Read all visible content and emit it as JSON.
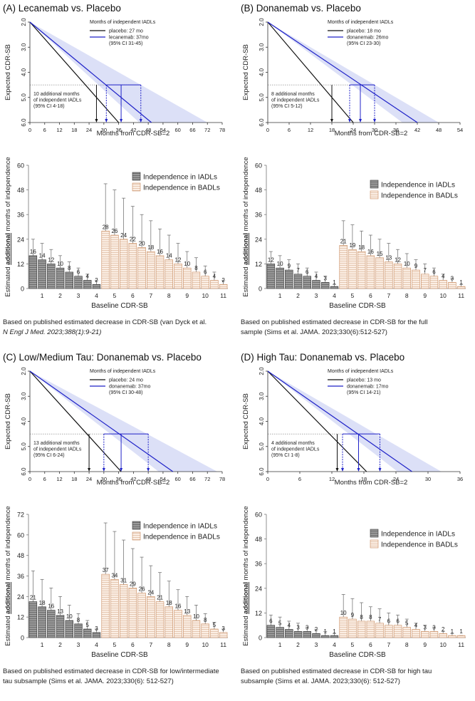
{
  "panels": [
    {
      "letter": "(A)",
      "title": "Lecanemab vs. Placebo",
      "line": {
        "ylabel": "Expected CDR-SB",
        "xlabel": "Months from CDR-SB=2",
        "xticks": [
          0,
          6,
          12,
          18,
          24,
          30,
          36,
          42,
          48,
          54,
          60,
          66,
          72,
          78
        ],
        "yticks": [
          "2.0",
          "3.0",
          "4.0",
          "5.0",
          "6.0"
        ],
        "xmax": 78,
        "legend_title": "Months of independent IADLs",
        "legend_placebo": "placebo: 27 mo",
        "legend_drug": "lecanemab: 37mo",
        "legend_ci": "(95% CI 31-45)",
        "annotation": [
          "10 additional months",
          "of  independent IADLs",
          "(95% CI 4-18)"
        ],
        "placebo_end": 36,
        "drug_end": 49.3,
        "ci_end": 72,
        "placebo_cross": 27,
        "drug_cross": 37,
        "ci_low": 31,
        "ci_high": 45
      },
      "bars": {
        "ylabel_parts": [
          "Estimated ",
          "additional",
          " months of independence"
        ],
        "xlabel": "Baseline CDR-SB",
        "ymax": 60,
        "yticks": [
          0,
          12,
          24,
          36,
          48,
          60
        ],
        "xticks": [
          "1",
          "2",
          "3",
          "4",
          "5",
          "6",
          "7",
          "8",
          "9",
          "10",
          "11"
        ],
        "legend": [
          "Independence in IADLs",
          "Independence in BADLs"
        ],
        "iadl": [
          16,
          14,
          12,
          10,
          8,
          6,
          4,
          2
        ],
        "iadl_err": [
          24,
          22,
          19,
          16,
          13,
          10,
          7,
          4
        ],
        "badl": [
          28,
          26,
          24,
          22,
          20,
          18,
          16,
          14,
          12,
          10,
          8,
          6,
          4,
          2
        ],
        "badl_err": [
          51,
          48,
          44,
          40,
          36,
          33,
          29,
          26,
          22,
          18,
          15,
          11,
          8,
          4
        ]
      },
      "caption": [
        {
          "text": "Based on published estimated decrease in CDR-SB (van Dyck et al.",
          "italic": false
        },
        {
          "text": "N Engl J Med. 2023;388(1):9-21)",
          "italic": true
        }
      ]
    },
    {
      "letter": "(B)",
      "title": "Donanemab vs. Placebo",
      "line": {
        "ylabel": "Expected CDR-SB",
        "xlabel": "Months from CDR-SB=2",
        "xticks": [
          0,
          6,
          12,
          18,
          24,
          30,
          36,
          42,
          48,
          54
        ],
        "yticks": [
          "2.0",
          "3.0",
          "4.0",
          "5.0",
          "6.0"
        ],
        "xmax": 54,
        "legend_title": "Months of independent IADLs",
        "legend_placebo": "placebo:  18 mo",
        "legend_drug": "donanemab: 26mo",
        "legend_ci": "(95% CI 23-30)",
        "annotation": [
          "8 additional months",
          "of  independent IADLs",
          "(95% CI 5-12)"
        ],
        "placebo_end": 24,
        "drug_end": 42,
        "ci_end": 48,
        "placebo_cross": 18,
        "drug_cross": 26,
        "ci_low": 23,
        "ci_high": 30
      },
      "bars": {
        "ylabel_parts": [
          "Estimated ",
          "additional",
          " months of independence"
        ],
        "xlabel": "Baseline CDR-SB",
        "ymax": 60,
        "yticks": [
          0,
          12,
          24,
          36,
          48,
          60
        ],
        "xticks": [
          "1",
          "2",
          "3",
          "4",
          "5",
          "6",
          "7",
          "8",
          "9",
          "10",
          "11"
        ],
        "legend": [
          "Independence in IADLs",
          "Independence in BADLs"
        ],
        "iadl": [
          12,
          10,
          9,
          7,
          6,
          4,
          3,
          1
        ],
        "iadl_err": [
          18,
          16,
          14,
          12,
          10,
          8,
          6,
          2
        ],
        "badl": [
          21,
          19,
          18,
          16,
          15,
          13,
          12,
          10,
          9,
          7,
          6,
          4,
          3,
          1
        ],
        "badl_err": [
          33,
          31,
          28,
          26,
          24,
          22,
          19,
          17,
          14,
          12,
          10,
          7,
          5,
          2
        ]
      },
      "caption": [
        {
          "text": "Based on published estimated decrease in CDR-SB for the full",
          "italic": false
        },
        {
          "text": "sample (Sims et al. JAMA. 2023;330(6):512-527)",
          "italic": false
        }
      ]
    },
    {
      "letter": "(C)",
      "title": "Low/Medium Tau: Donanemab vs. Placebo",
      "line": {
        "ylabel": "Expected CDR-SB",
        "xlabel": "Months from CDR-SB=2",
        "xticks": [
          0,
          6,
          12,
          18,
          24,
          30,
          36,
          42,
          48,
          54,
          60,
          66,
          72,
          78
        ],
        "yticks": [
          "2.0",
          "3.0",
          "4.0",
          "5.0",
          "6.0"
        ],
        "xmax": 78,
        "legend_title": "Months of independent IADLs",
        "legend_placebo": "placebo:  24 mo",
        "legend_drug": "donanemab: 37mo",
        "legend_ci": "(95% CI 30-48)",
        "annotation": [
          "13 additional months",
          "of  independent IADLs",
          "(95% CI 6-24)"
        ],
        "placebo_end": 37,
        "drug_end": 58,
        "ci_end": 76,
        "placebo_cross": 24,
        "drug_cross": 37,
        "ci_low": 30,
        "ci_high": 48
      },
      "bars": {
        "ylabel_parts": [
          "Estimated ",
          "additional",
          " months of independence"
        ],
        "xlabel": "Baseline CDR-SB",
        "ymax": 72,
        "yticks": [
          0,
          12,
          24,
          36,
          48,
          60,
          72
        ],
        "xticks": [
          "1",
          "2",
          "3",
          "4",
          "5",
          "6",
          "7",
          "8",
          "9",
          "10",
          "11"
        ],
        "legend": [
          "Independence in IADLs",
          "Independence in BADLs"
        ],
        "iadl": [
          21,
          18,
          16,
          13,
          10,
          8,
          5,
          3
        ],
        "iadl_err": [
          39,
          34,
          29,
          24,
          19,
          14,
          10,
          5
        ],
        "badl": [
          37,
          34,
          31,
          29,
          26,
          24,
          21,
          18,
          16,
          13,
          10,
          8,
          5,
          3
        ],
        "badl_err": [
          67,
          62,
          57,
          52,
          47,
          42,
          38,
          33,
          28,
          24,
          19,
          14,
          9,
          5
        ]
      },
      "caption": [
        {
          "text": "Based on published estimated decrease in CDR-SB for low/intermediate",
          "italic": false
        },
        {
          "text": "tau subsample (Sims et al. JAMA. 2023;330(6): 512-527)",
          "italic": false
        }
      ]
    },
    {
      "letter": "(D)",
      "title": "High Tau: Donanemab vs. Placebo",
      "line": {
        "ylabel": "Expected CDR-SB",
        "xlabel": "Months from CDR-SB=2",
        "xticks": [
          0,
          6,
          12,
          18,
          24,
          30,
          36
        ],
        "yticks": [
          "2.0",
          "3.0",
          "4.0",
          "5.0",
          "6.0"
        ],
        "xmax": 36,
        "legend_title": "Months of independent IADLs",
        "legend_placebo": "placebo:  13 mo",
        "legend_drug": "donanemab: 17mo",
        "legend_ci": "(95% CI 14-21)",
        "annotation": [
          "4 additional months",
          "of  independent IADLs",
          "(95% CI 1-8)"
        ],
        "placebo_end": 18.5,
        "drug_end": 27,
        "ci_end": 32.5,
        "placebo_cross": 13,
        "drug_cross": 17,
        "ci_low": 14,
        "ci_high": 21
      },
      "bars": {
        "ylabel_parts": [
          "Estimated ",
          "additional",
          " months of independence"
        ],
        "xlabel": "Baseline CDR-SB",
        "ymax": 60,
        "yticks": [
          0,
          12,
          24,
          36,
          48,
          60
        ],
        "xticks": [
          "1",
          "2",
          "3",
          "4",
          "5",
          "6",
          "7",
          "8",
          "9",
          "10",
          "11"
        ],
        "legend": [
          "Independence in IADLs",
          "Independence in BADLs"
        ],
        "iadl": [
          6,
          5,
          4,
          3,
          3,
          2,
          1,
          1
        ],
        "iadl_err": [
          11,
          10,
          8,
          7,
          5,
          4,
          3,
          2
        ],
        "badl": [
          10,
          9,
          8,
          8,
          7,
          6,
          6,
          5,
          4,
          3,
          3,
          2,
          1,
          1
        ],
        "badl_err": [
          21,
          19,
          17,
          15,
          14,
          12,
          11,
          9,
          7,
          6,
          5,
          3,
          2,
          1
        ]
      },
      "caption": [
        {
          "text": "Based on published estimated decrease in CDR-SB for high tau",
          "italic": false
        },
        {
          "text": "subsample (Sims et al. JAMA. 2023;330(6): 512-527)",
          "italic": false
        }
      ]
    }
  ],
  "chart_data": [
    {
      "type": "line",
      "title": "Lecanemab vs. Placebo",
      "xlabel": "Months from CDR-SB=2",
      "ylabel": "Expected CDR-SB",
      "xlim": [
        0,
        78
      ],
      "ylim": [
        6.0,
        2.0
      ],
      "series": [
        {
          "name": "placebo",
          "x": [
            0,
            36
          ],
          "y": [
            2.0,
            6.0
          ]
        },
        {
          "name": "lecanemab",
          "x": [
            0,
            49.3
          ],
          "y": [
            2.0,
            6.0
          ]
        }
      ],
      "annotations": [
        "10 additional months of independent IADLs (95% CI 4-18)"
      ]
    },
    {
      "type": "bar",
      "title": "Lecanemab vs. Placebo",
      "xlabel": "Baseline CDR-SB",
      "ylabel": "Estimated additional months of independence",
      "ylim": [
        0,
        60
      ],
      "series": [
        {
          "name": "Independence in IADLs",
          "x": [
            0.5,
            1,
            1.5,
            2,
            2.5,
            3,
            3.5,
            4
          ],
          "values": [
            16,
            14,
            12,
            10,
            8,
            6,
            4,
            2
          ]
        },
        {
          "name": "Independence in BADLs",
          "x": [
            4.5,
            5,
            5.5,
            6,
            6.5,
            7,
            7.5,
            8,
            8.5,
            9,
            9.5,
            10,
            10.5,
            11
          ],
          "values": [
            28,
            26,
            24,
            22,
            20,
            18,
            16,
            14,
            12,
            10,
            8,
            6,
            4,
            2
          ]
        }
      ]
    },
    {
      "type": "line",
      "title": "Donanemab vs. Placebo",
      "xlabel": "Months from CDR-SB=2",
      "ylabel": "Expected CDR-SB",
      "xlim": [
        0,
        54
      ],
      "ylim": [
        6.0,
        2.0
      ],
      "series": [
        {
          "name": "placebo",
          "x": [
            0,
            24
          ],
          "y": [
            2.0,
            6.0
          ]
        },
        {
          "name": "donanemab",
          "x": [
            0,
            42
          ],
          "y": [
            2.0,
            6.0
          ]
        }
      ],
      "annotations": [
        "8 additional months of independent IADLs (95% CI 5-12)"
      ]
    },
    {
      "type": "bar",
      "title": "Donanemab vs. Placebo",
      "xlabel": "Baseline CDR-SB",
      "ylabel": "Estimated additional months of independence",
      "ylim": [
        0,
        60
      ],
      "series": [
        {
          "name": "Independence in IADLs",
          "x": [
            0.5,
            1,
            1.5,
            2,
            2.5,
            3,
            3.5,
            4
          ],
          "values": [
            12,
            10,
            9,
            7,
            6,
            4,
            3,
            1
          ]
        },
        {
          "name": "Independence in BADLs",
          "x": [
            4.5,
            5,
            5.5,
            6,
            6.5,
            7,
            7.5,
            8,
            8.5,
            9,
            9.5,
            10,
            10.5,
            11
          ],
          "values": [
            21,
            19,
            18,
            16,
            15,
            13,
            12,
            10,
            9,
            7,
            6,
            4,
            3,
            1
          ]
        }
      ]
    },
    {
      "type": "line",
      "title": "Low/Medium Tau: Donanemab vs. Placebo",
      "xlabel": "Months from CDR-SB=2",
      "ylabel": "Expected CDR-SB",
      "xlim": [
        0,
        78
      ],
      "ylim": [
        6.0,
        2.0
      ],
      "series": [
        {
          "name": "placebo",
          "x": [
            0,
            37
          ],
          "y": [
            2.0,
            6.0
          ]
        },
        {
          "name": "donanemab",
          "x": [
            0,
            58
          ],
          "y": [
            2.0,
            6.0
          ]
        }
      ],
      "annotations": [
        "13 additional months of independent IADLs (95% CI 6-24)"
      ]
    },
    {
      "type": "bar",
      "title": "Low/Medium Tau: Donanemab vs. Placebo",
      "xlabel": "Baseline CDR-SB",
      "ylabel": "Estimated additional months of independence",
      "ylim": [
        0,
        72
      ],
      "series": [
        {
          "name": "Independence in IADLs",
          "x": [
            0.5,
            1,
            1.5,
            2,
            2.5,
            3,
            3.5,
            4
          ],
          "values": [
            21,
            18,
            16,
            13,
            10,
            8,
            5,
            3
          ]
        },
        {
          "name": "Independence in BADLs",
          "x": [
            4.5,
            5,
            5.5,
            6,
            6.5,
            7,
            7.5,
            8,
            8.5,
            9,
            9.5,
            10,
            10.5,
            11
          ],
          "values": [
            37,
            34,
            31,
            29,
            26,
            24,
            21,
            18,
            16,
            13,
            10,
            8,
            5,
            3
          ]
        }
      ]
    },
    {
      "type": "line",
      "title": "High Tau: Donanemab vs. Placebo",
      "xlabel": "Months from CDR-SB=2",
      "ylabel": "Expected CDR-SB",
      "xlim": [
        0,
        36
      ],
      "ylim": [
        6.0,
        2.0
      ],
      "series": [
        {
          "name": "placebo",
          "x": [
            0,
            18.5
          ],
          "y": [
            2.0,
            6.0
          ]
        },
        {
          "name": "donanemab",
          "x": [
            0,
            27
          ],
          "y": [
            2.0,
            6.0
          ]
        }
      ],
      "annotations": [
        "4 additional months of independent IADLs (95% CI 1-8)"
      ]
    },
    {
      "type": "bar",
      "title": "High Tau: Donanemab vs. Placebo",
      "xlabel": "Baseline CDR-SB",
      "ylabel": "Estimated additional months of independence",
      "ylim": [
        0,
        60
      ],
      "series": [
        {
          "name": "Independence in IADLs",
          "x": [
            0.5,
            1,
            1.5,
            2,
            2.5,
            3,
            3.5,
            4
          ],
          "values": [
            6,
            5,
            4,
            3,
            3,
            2,
            1,
            1
          ]
        },
        {
          "name": "Independence in BADLs",
          "x": [
            4.5,
            5,
            5.5,
            6,
            6.5,
            7,
            7.5,
            8,
            8.5,
            9,
            9.5,
            10,
            10.5,
            11
          ],
          "values": [
            10,
            9,
            8,
            8,
            7,
            6,
            6,
            5,
            4,
            3,
            3,
            2,
            1,
            1
          ]
        }
      ]
    }
  ]
}
